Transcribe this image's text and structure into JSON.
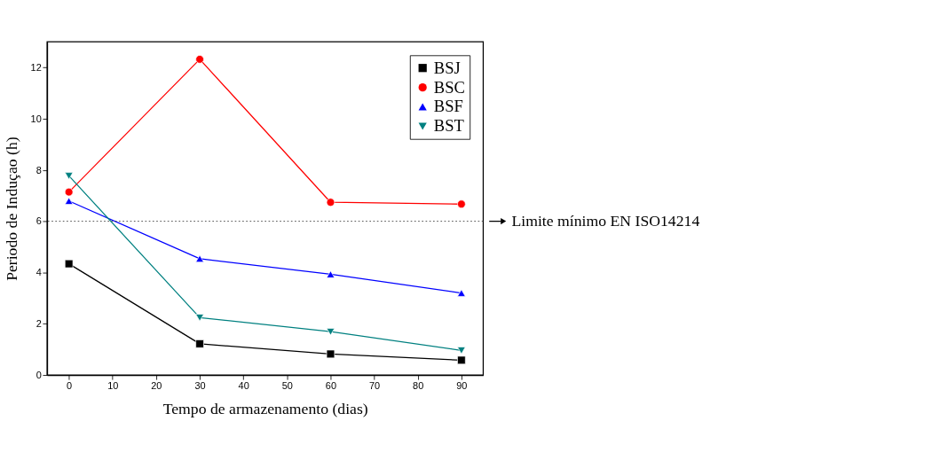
{
  "chart_data": {
    "type": "line",
    "xlabel": "Tempo de armazenamento (dias)",
    "ylabel": "Periodo de Induçao (h)",
    "x": [
      0,
      30,
      60,
      90
    ],
    "series": [
      {
        "name": "BSJ",
        "color": "#000000",
        "marker": "square",
        "values": [
          4.34,
          1.22,
          0.82,
          0.58
        ]
      },
      {
        "name": "BSC",
        "color": "#ff0000",
        "marker": "circle",
        "values": [
          7.14,
          12.32,
          6.74,
          6.67
        ]
      },
      {
        "name": "BSF",
        "color": "#0000ff",
        "marker": "triangle",
        "values": [
          6.79,
          4.54,
          3.93,
          3.2
        ]
      },
      {
        "name": "BST",
        "color": "#008080",
        "marker": "triangle-down",
        "values": [
          7.77,
          2.24,
          1.69,
          0.96
        ]
      }
    ],
    "xlim": [
      -5,
      95
    ],
    "xticks": [
      0,
      10,
      20,
      30,
      40,
      50,
      60,
      70,
      80,
      90
    ],
    "ylim": [
      0,
      13
    ],
    "yticks": [
      0,
      2,
      4,
      6,
      8,
      10,
      12
    ],
    "ref_lines": [
      {
        "axis": "y",
        "value": 6,
        "label": "Limite mínimo EN ISO14214",
        "color": "#333333",
        "line_style": "dotted"
      }
    ],
    "legend": "top right",
    "grid": false,
    "line_style": "solid"
  }
}
